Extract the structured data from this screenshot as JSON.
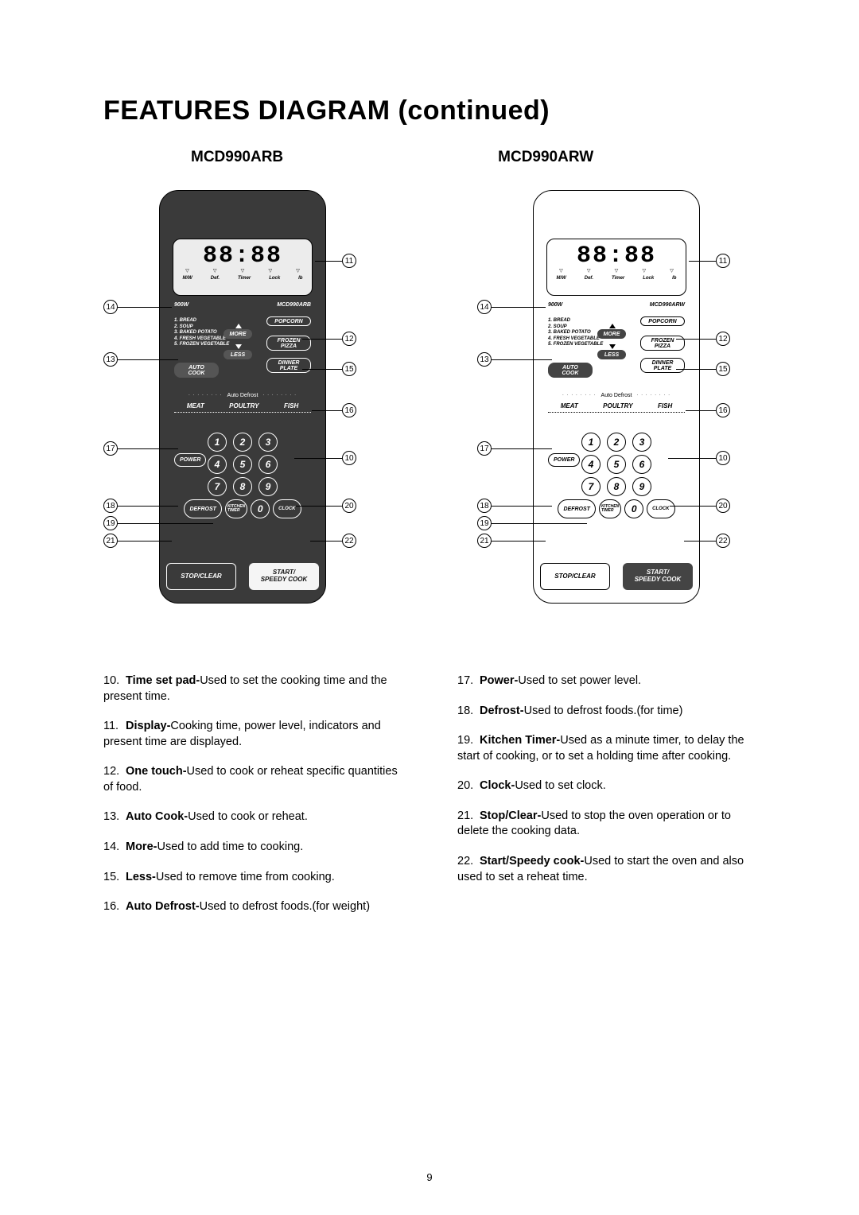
{
  "title": "FEATURES DIAGRAM (continued)",
  "page_number": "9",
  "model_left": "MCD990ARB",
  "model_right": "MCD990ARW",
  "display_time": "88:88",
  "indicators": [
    "M/W",
    "Def.",
    "Timer",
    "Lock",
    "lb"
  ],
  "watt": "900W",
  "model_arb": "MCD990ARB",
  "model_arw": "MCD990ARW",
  "food_list": [
    "1. BREAD",
    "2. SOUP",
    "3. BAKED POTATO",
    "4. FRESH VEGETABLE",
    "5. FROZEN VEGETABLE"
  ],
  "btn_more": "MORE",
  "btn_less": "LESS",
  "btn_autocook": "AUTO\nCOOK",
  "btn_popcorn": "POPCORN",
  "btn_frozenpizza": "FROZEN\nPIZZA",
  "btn_dinnerplate": "DINNER\nPLATE",
  "autodefrost_label": "Auto Defrost",
  "mpf": [
    "MEAT",
    "POULTRY",
    "FISH"
  ],
  "btn_power": "POWER",
  "btn_defrost": "DEFROST",
  "btn_kitchen": "KITCHEN\nTIMER",
  "btn_clock": "CLOCK",
  "btn_stop": "STOP/CLEAR",
  "btn_start": "START/\nSPEEDY COOK",
  "numbers": [
    "1",
    "2",
    "3",
    "4",
    "5",
    "6",
    "7",
    "8",
    "9",
    "0"
  ],
  "callouts_right": {
    "c11": "11",
    "c12": "12",
    "c15": "15",
    "c16": "16",
    "c10": "10",
    "c20": "20",
    "c22": "22"
  },
  "callouts_left": {
    "c14": "14",
    "c13": "13",
    "c17": "17",
    "c18": "18",
    "c19": "19",
    "c21": "21"
  },
  "desc": [
    {
      "n": "10.",
      "b": "Time set pad-",
      "t": "Used to set the cooking time and the present time."
    },
    {
      "n": "11.",
      "b": "Display-",
      "t": "Cooking time, power level, indicators and present time are displayed."
    },
    {
      "n": "12.",
      "b": "One touch-",
      "t": "Used to cook or reheat specific quantities of food."
    },
    {
      "n": "13.",
      "b": "Auto Cook-",
      "t": "Used to cook or reheat."
    },
    {
      "n": "14.",
      "b": "More-",
      "t": "Used to add time to cooking."
    },
    {
      "n": "15.",
      "b": "Less-",
      "t": "Used to remove time from cooking."
    },
    {
      "n": "16.",
      "b": "Auto Defrost-",
      "t": "Used to defrost foods.(for weight)"
    }
  ],
  "desc2": [
    {
      "n": "17.",
      "b": "Power-",
      "t": "Used to set power level."
    },
    {
      "n": "18.",
      "b": "Defrost-",
      "t": "Used to defrost foods.(for time)"
    },
    {
      "n": "19.",
      "b": "Kitchen Timer-",
      "t": "Used as a minute timer, to delay the start of cooking, or to set a holding time after cooking."
    },
    {
      "n": "20.",
      "b": "Clock-",
      "t": "Used to set clock."
    },
    {
      "n": "21.",
      "b": "Stop/Clear-",
      "t": "Used to stop the oven operation or to delete the cooking data."
    },
    {
      "n": "22.",
      "b": "Start/Speedy cook-",
      "t": "Used to start the oven and also used to set a reheat time."
    }
  ]
}
